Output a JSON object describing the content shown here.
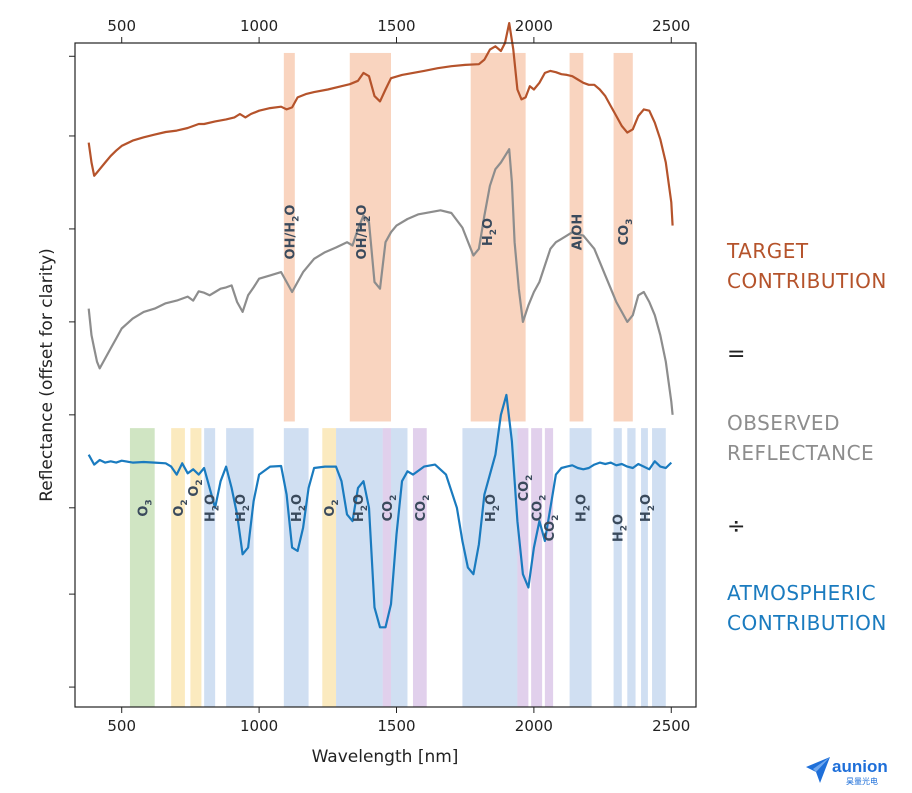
{
  "chart_data": {
    "type": "line",
    "title": "",
    "xlabel": "Wavelength [nm]",
    "ylabel": "Reflectance (offset for clarity)",
    "xlim": [
      330,
      2590
    ],
    "x_ticks": [
      500,
      1000,
      1500,
      2000,
      2500
    ],
    "y_range": [
      0,
      1
    ],
    "grid": false,
    "y_tick_fractions": [
      0.03,
      0.17,
      0.3,
      0.44,
      0.58,
      0.72,
      0.86,
      0.98
    ],
    "series": [
      {
        "name": "TARGET CONTRIBUTION",
        "color": "#b5532b",
        "x": [
          380,
          390,
          400,
          410,
          420,
          440,
          460,
          480,
          500,
          540,
          580,
          620,
          660,
          700,
          740,
          760,
          780,
          800,
          840,
          880,
          910,
          930,
          950,
          970,
          1000,
          1040,
          1080,
          1100,
          1120,
          1140,
          1170,
          1200,
          1250,
          1300,
          1330,
          1360,
          1380,
          1400,
          1420,
          1440,
          1460,
          1480,
          1520,
          1560,
          1600,
          1650,
          1700,
          1750,
          1800,
          1820,
          1840,
          1860,
          1880,
          1895,
          1910,
          1925,
          1940,
          1955,
          1970,
          1985,
          2000,
          2020,
          2040,
          2060,
          2080,
          2100,
          2120,
          2140,
          2160,
          2180,
          2200,
          2220,
          2240,
          2260,
          2280,
          2300,
          2320,
          2340,
          2360,
          2380,
          2400,
          2420,
          2440,
          2460,
          2480,
          2500,
          2505
        ],
        "y": [
          0.85,
          0.82,
          0.8,
          0.805,
          0.81,
          0.82,
          0.83,
          0.838,
          0.845,
          0.853,
          0.858,
          0.862,
          0.866,
          0.868,
          0.872,
          0.875,
          0.878,
          0.878,
          0.882,
          0.885,
          0.888,
          0.893,
          0.888,
          0.893,
          0.898,
          0.902,
          0.904,
          0.9,
          0.903,
          0.918,
          0.923,
          0.926,
          0.93,
          0.935,
          0.938,
          0.943,
          0.955,
          0.95,
          0.92,
          0.912,
          0.93,
          0.947,
          0.952,
          0.955,
          0.958,
          0.962,
          0.965,
          0.967,
          0.968,
          0.975,
          0.99,
          0.995,
          0.988,
          1.0,
          1.03,
          0.99,
          0.93,
          0.915,
          0.918,
          0.935,
          0.93,
          0.94,
          0.955,
          0.958,
          0.956,
          0.953,
          0.952,
          0.95,
          0.945,
          0.94,
          0.937,
          0.937,
          0.93,
          0.92,
          0.905,
          0.89,
          0.875,
          0.865,
          0.87,
          0.89,
          0.9,
          0.898,
          0.88,
          0.855,
          0.82,
          0.76,
          0.725
        ]
      },
      {
        "name": "OBSERVED REFLECTANCE",
        "color": "#8d8d8d",
        "x": [
          380,
          390,
          400,
          410,
          420,
          440,
          460,
          480,
          500,
          540,
          580,
          620,
          660,
          700,
          740,
          760,
          780,
          800,
          820,
          840,
          860,
          880,
          900,
          920,
          940,
          960,
          980,
          1000,
          1040,
          1080,
          1100,
          1120,
          1140,
          1160,
          1200,
          1240,
          1280,
          1320,
          1340,
          1360,
          1380,
          1400,
          1420,
          1440,
          1460,
          1480,
          1500,
          1540,
          1580,
          1620,
          1660,
          1700,
          1740,
          1780,
          1800,
          1820,
          1840,
          1860,
          1880,
          1895,
          1910,
          1920,
          1930,
          1945,
          1960,
          1980,
          2000,
          2020,
          2040,
          2060,
          2080,
          2100,
          2120,
          2140,
          2160,
          2180,
          2200,
          2220,
          2240,
          2260,
          2280,
          2300,
          2320,
          2340,
          2360,
          2380,
          2400,
          2420,
          2440,
          2460,
          2480,
          2500,
          2505
        ],
        "y": [
          0.6,
          0.56,
          0.54,
          0.52,
          0.51,
          0.525,
          0.54,
          0.555,
          0.57,
          0.585,
          0.595,
          0.6,
          0.608,
          0.612,
          0.618,
          0.612,
          0.626,
          0.624,
          0.62,
          0.625,
          0.63,
          0.632,
          0.635,
          0.61,
          0.595,
          0.62,
          0.632,
          0.645,
          0.65,
          0.655,
          0.64,
          0.625,
          0.64,
          0.655,
          0.675,
          0.685,
          0.692,
          0.7,
          0.695,
          0.72,
          0.74,
          0.73,
          0.64,
          0.63,
          0.7,
          0.715,
          0.725,
          0.735,
          0.742,
          0.745,
          0.748,
          0.744,
          0.722,
          0.68,
          0.69,
          0.74,
          0.785,
          0.81,
          0.82,
          0.83,
          0.84,
          0.79,
          0.7,
          0.63,
          0.58,
          0.605,
          0.625,
          0.64,
          0.665,
          0.69,
          0.7,
          0.705,
          0.71,
          0.715,
          0.712,
          0.71,
          0.7,
          0.69,
          0.67,
          0.65,
          0.63,
          0.61,
          0.595,
          0.58,
          0.59,
          0.62,
          0.625,
          0.61,
          0.59,
          0.56,
          0.52,
          0.46,
          0.44
        ]
      },
      {
        "name": "ATMOSPHERIC CONTRIBUTION",
        "color": "#1a7bbf",
        "x": [
          380,
          400,
          420,
          440,
          460,
          480,
          500,
          540,
          580,
          620,
          660,
          680,
          700,
          720,
          740,
          760,
          780,
          800,
          820,
          840,
          860,
          880,
          900,
          920,
          940,
          960,
          980,
          1000,
          1040,
          1080,
          1100,
          1120,
          1140,
          1160,
          1180,
          1200,
          1240,
          1280,
          1300,
          1320,
          1340,
          1360,
          1380,
          1400,
          1420,
          1440,
          1460,
          1480,
          1500,
          1520,
          1540,
          1560,
          1600,
          1640,
          1680,
          1720,
          1740,
          1760,
          1780,
          1800,
          1820,
          1840,
          1860,
          1880,
          1900,
          1920,
          1940,
          1960,
          1980,
          2000,
          2020,
          2040,
          2060,
          2080,
          2100,
          2120,
          2140,
          2160,
          2180,
          2200,
          2220,
          2240,
          2260,
          2280,
          2300,
          2320,
          2340,
          2360,
          2380,
          2400,
          2420,
          2440,
          2460,
          2480,
          2500
        ],
        "y": [
          0.38,
          0.365,
          0.372,
          0.368,
          0.37,
          0.368,
          0.371,
          0.368,
          0.369,
          0.368,
          0.367,
          0.362,
          0.35,
          0.367,
          0.352,
          0.358,
          0.35,
          0.36,
          0.33,
          0.3,
          0.34,
          0.362,
          0.33,
          0.29,
          0.23,
          0.24,
          0.31,
          0.35,
          0.362,
          0.363,
          0.32,
          0.24,
          0.235,
          0.27,
          0.33,
          0.36,
          0.362,
          0.362,
          0.34,
          0.29,
          0.28,
          0.33,
          0.34,
          0.3,
          0.15,
          0.12,
          0.12,
          0.155,
          0.26,
          0.34,
          0.355,
          0.35,
          0.362,
          0.365,
          0.35,
          0.3,
          0.25,
          0.21,
          0.2,
          0.245,
          0.32,
          0.35,
          0.38,
          0.44,
          0.47,
          0.4,
          0.28,
          0.2,
          0.18,
          0.24,
          0.28,
          0.25,
          0.3,
          0.35,
          0.36,
          0.362,
          0.364,
          0.36,
          0.358,
          0.36,
          0.365,
          0.368,
          0.366,
          0.368,
          0.364,
          0.366,
          0.362,
          0.36,
          0.366,
          0.362,
          0.358,
          0.37,
          0.362,
          0.36,
          0.368
        ]
      }
    ],
    "bands": [
      {
        "x0": 1090,
        "x1": 1130,
        "color": "#f4b08a",
        "region": "top"
      },
      {
        "x0": 1330,
        "x1": 1480,
        "color": "#f4b08a",
        "region": "top"
      },
      {
        "x0": 1770,
        "x1": 1970,
        "color": "#f4b08a",
        "region": "top"
      },
      {
        "x0": 2130,
        "x1": 2180,
        "color": "#f4b08a",
        "region": "top"
      },
      {
        "x0": 2290,
        "x1": 2360,
        "color": "#f4b08a",
        "region": "top"
      },
      {
        "x0": 530,
        "x1": 620,
        "color": "#a9cf91",
        "region": "bottom"
      },
      {
        "x0": 680,
        "x1": 730,
        "color": "#f8d98a",
        "region": "bottom"
      },
      {
        "x0": 750,
        "x1": 790,
        "color": "#f8d98a",
        "region": "bottom"
      },
      {
        "x0": 800,
        "x1": 840,
        "color": "#a9c4e8",
        "region": "bottom"
      },
      {
        "x0": 880,
        "x1": 980,
        "color": "#a9c4e8",
        "region": "bottom"
      },
      {
        "x0": 1090,
        "x1": 1180,
        "color": "#a9c4e8",
        "region": "bottom"
      },
      {
        "x0": 1230,
        "x1": 1280,
        "color": "#f8d98a",
        "region": "bottom"
      },
      {
        "x0": 1280,
        "x1": 1450,
        "color": "#a9c4e8",
        "region": "bottom"
      },
      {
        "x0": 1450,
        "x1": 1480,
        "color": "#c9a9dc",
        "region": "bottom"
      },
      {
        "x0": 1480,
        "x1": 1540,
        "color": "#a9c4e8",
        "region": "bottom"
      },
      {
        "x0": 1560,
        "x1": 1610,
        "color": "#c9a9dc",
        "region": "bottom"
      },
      {
        "x0": 1740,
        "x1": 1940,
        "color": "#a9c4e8",
        "region": "bottom"
      },
      {
        "x0": 1940,
        "x1": 1980,
        "color": "#c9a9dc",
        "region": "bottom"
      },
      {
        "x0": 1990,
        "x1": 2030,
        "color": "#c9a9dc",
        "region": "bottom"
      },
      {
        "x0": 2040,
        "x1": 2070,
        "color": "#c9a9dc",
        "region": "bottom"
      },
      {
        "x0": 2130,
        "x1": 2210,
        "color": "#a9c4e8",
        "region": "bottom"
      },
      {
        "x0": 2290,
        "x1": 2320,
        "color": "#a9c4e8",
        "region": "bottom"
      },
      {
        "x0": 2340,
        "x1": 2370,
        "color": "#a9c4e8",
        "region": "bottom"
      },
      {
        "x0": 2390,
        "x1": 2415,
        "color": "#a9c4e8",
        "region": "bottom"
      },
      {
        "x0": 2430,
        "x1": 2480,
        "color": "#a9c4e8",
        "region": "bottom"
      }
    ],
    "feature_labels_top": [
      {
        "x": 1110,
        "main": "OH/H",
        "sub": "2",
        "tail": "O"
      },
      {
        "x": 1370,
        "main": "OH/H",
        "sub": "2",
        "tail": "O"
      },
      {
        "x": 1830,
        "main": "H",
        "sub": "2",
        "tail": "O"
      },
      {
        "x": 2155,
        "main": "AlOH",
        "sub": "",
        "tail": ""
      },
      {
        "x": 2325,
        "main": "CO",
        "sub": "3",
        "tail": ""
      }
    ],
    "feature_labels_bottom": [
      {
        "x": 575,
        "main": "O",
        "sub": "3",
        "tail": "",
        "level": 0
      },
      {
        "x": 705,
        "main": "O",
        "sub": "2",
        "tail": "",
        "level": 0
      },
      {
        "x": 760,
        "main": "O",
        "sub": "2",
        "tail": "",
        "level": -1
      },
      {
        "x": 820,
        "main": "H",
        "sub": "2",
        "tail": "O",
        "level": 0
      },
      {
        "x": 930,
        "main": "H",
        "sub": "2",
        "tail": "O",
        "level": 0
      },
      {
        "x": 1135,
        "main": "H",
        "sub": "2",
        "tail": "O",
        "level": 0
      },
      {
        "x": 1255,
        "main": "O",
        "sub": "2",
        "tail": "",
        "level": 0
      },
      {
        "x": 1360,
        "main": "H",
        "sub": "2",
        "tail": "O",
        "level": 0
      },
      {
        "x": 1465,
        "main": "CO",
        "sub": "2",
        "tail": "",
        "level": 0
      },
      {
        "x": 1585,
        "main": "CO",
        "sub": "2",
        "tail": "",
        "level": 0
      },
      {
        "x": 1840,
        "main": "H",
        "sub": "2",
        "tail": "O",
        "level": 0
      },
      {
        "x": 1960,
        "main": "CO",
        "sub": "2",
        "tail": "",
        "level": -1
      },
      {
        "x": 2010,
        "main": "CO",
        "sub": "2",
        "tail": "",
        "level": 0
      },
      {
        "x": 2055,
        "main": "CO",
        "sub": "2",
        "tail": "",
        "level": 1
      },
      {
        "x": 2170,
        "main": "H",
        "sub": "2",
        "tail": "O",
        "level": 0
      },
      {
        "x": 2305,
        "main": "H",
        "sub": "2",
        "tail": "O",
        "level": 1
      },
      {
        "x": 2405,
        "main": "H",
        "sub": "2",
        "tail": "O",
        "level": 0
      }
    ]
  },
  "legend": {
    "target_1": "TARGET",
    "target_2": "CONTRIBUTION",
    "equals": "=",
    "observed_1": "OBSERVED",
    "observed_2": "REFLECTANCE",
    "divide": "÷",
    "atmo_1": "ATMOSPHERIC",
    "atmo_2": "CONTRIBUTION"
  },
  "logo": {
    "name": "aunion",
    "sub": "昊量光电",
    "color": "#1e6fd9"
  }
}
